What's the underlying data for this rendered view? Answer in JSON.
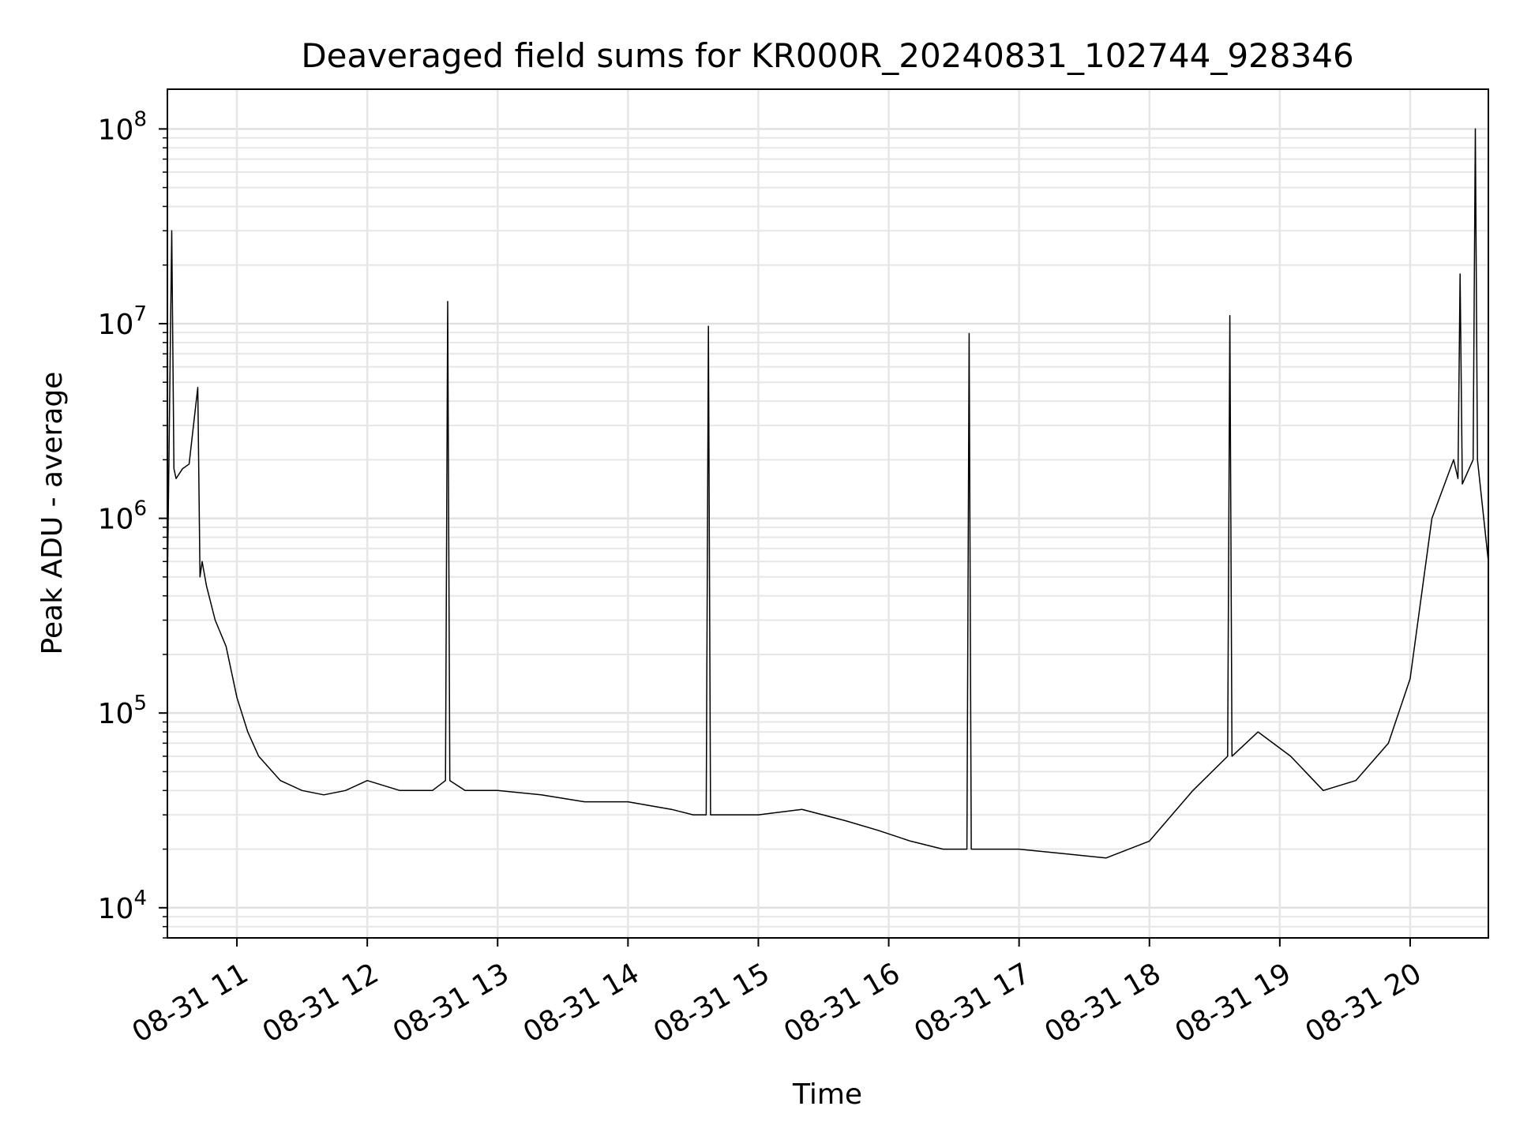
{
  "chart_data": {
    "type": "line",
    "title": "Deaveraged field sums for KR000R_20240831_102744_928346",
    "xlabel": "Time",
    "ylabel": "Peak ADU - average",
    "yscale": "log",
    "ylim": [
      7000,
      160000000
    ],
    "xlim": [
      "2024-08-31 10:28",
      "2024-08-31 20:36"
    ],
    "grid": true,
    "line_color": "#000000",
    "x_tick_labels": [
      "08-31 11",
      "08-31 12",
      "08-31 13",
      "08-31 14",
      "08-31 15",
      "08-31 16",
      "08-31 17",
      "08-31 18",
      "08-31 19",
      "08-31 20"
    ],
    "x_ticks": [
      "2024-08-31 11:00",
      "2024-08-31 12:00",
      "2024-08-31 13:00",
      "2024-08-31 14:00",
      "2024-08-31 15:00",
      "2024-08-31 16:00",
      "2024-08-31 17:00",
      "2024-08-31 18:00",
      "2024-08-31 19:00",
      "2024-08-31 20:00"
    ],
    "y_ticks": [
      {
        "value": 10000,
        "base": "10",
        "exp": "4"
      },
      {
        "value": 100000,
        "base": "10",
        "exp": "5"
      },
      {
        "value": 1000000,
        "base": "10",
        "exp": "6"
      },
      {
        "value": 10000000,
        "base": "10",
        "exp": "7"
      },
      {
        "value": 100000000,
        "base": "10",
        "exp": "8"
      }
    ],
    "series": [
      {
        "x": [
          "2024-08-31 10:28",
          "2024-08-31 10:30",
          "2024-08-31 10:31",
          "2024-08-31 10:32",
          "2024-08-31 10:35",
          "2024-08-31 10:38",
          "2024-08-31 10:42",
          "2024-08-31 10:43",
          "2024-08-31 10:44",
          "2024-08-31 10:46",
          "2024-08-31 10:50",
          "2024-08-31 10:55",
          "2024-08-31 11:00",
          "2024-08-31 11:05",
          "2024-08-31 11:10",
          "2024-08-31 11:20",
          "2024-08-31 11:30",
          "2024-08-31 11:40",
          "2024-08-31 11:50",
          "2024-08-31 12:00",
          "2024-08-31 12:15",
          "2024-08-31 12:30",
          "2024-08-31 12:36",
          "2024-08-31 12:37",
          "2024-08-31 12:38",
          "2024-08-31 12:45",
          "2024-08-31 13:00",
          "2024-08-31 13:20",
          "2024-08-31 13:40",
          "2024-08-31 14:00",
          "2024-08-31 14:20",
          "2024-08-31 14:30",
          "2024-08-31 14:36",
          "2024-08-31 14:37",
          "2024-08-31 14:38",
          "2024-08-31 14:45",
          "2024-08-31 15:00",
          "2024-08-31 15:20",
          "2024-08-31 15:40",
          "2024-08-31 15:55",
          "2024-08-31 16:10",
          "2024-08-31 16:25",
          "2024-08-31 16:36",
          "2024-08-31 16:37",
          "2024-08-31 16:38",
          "2024-08-31 16:45",
          "2024-08-31 17:00",
          "2024-08-31 17:20",
          "2024-08-31 17:40",
          "2024-08-31 18:00",
          "2024-08-31 18:20",
          "2024-08-31 18:36",
          "2024-08-31 18:37",
          "2024-08-31 18:38",
          "2024-08-31 18:50",
          "2024-08-31 19:05",
          "2024-08-31 19:20",
          "2024-08-31 19:35",
          "2024-08-31 19:50",
          "2024-08-31 20:00",
          "2024-08-31 20:10",
          "2024-08-31 20:20",
          "2024-08-31 20:22",
          "2024-08-31 20:23",
          "2024-08-31 20:24",
          "2024-08-31 20:29",
          "2024-08-31 20:30",
          "2024-08-31 20:31",
          "2024-08-31 20:36"
        ],
        "y": [
          450000,
          30000000,
          1800000,
          1600000,
          1800000,
          1900000,
          4700000,
          500000,
          600000,
          450000,
          300000,
          220000,
          120000,
          80000,
          60000,
          45000,
          40000,
          38000,
          40000,
          45000,
          40000,
          40000,
          45000,
          13000000,
          45000,
          40000,
          40000,
          38000,
          35000,
          35000,
          32000,
          30000,
          30000,
          9700000,
          30000,
          30000,
          30000,
          32000,
          28000,
          25000,
          22000,
          20000,
          20000,
          8900000,
          20000,
          20000,
          20000,
          19000,
          18000,
          22000,
          40000,
          60000,
          11000000,
          60000,
          80000,
          60000,
          40000,
          45000,
          70000,
          150000,
          1000000,
          2000000,
          1600000,
          18000000,
          1500000,
          2000000,
          100000000,
          2000000,
          600000
        ]
      }
    ]
  }
}
